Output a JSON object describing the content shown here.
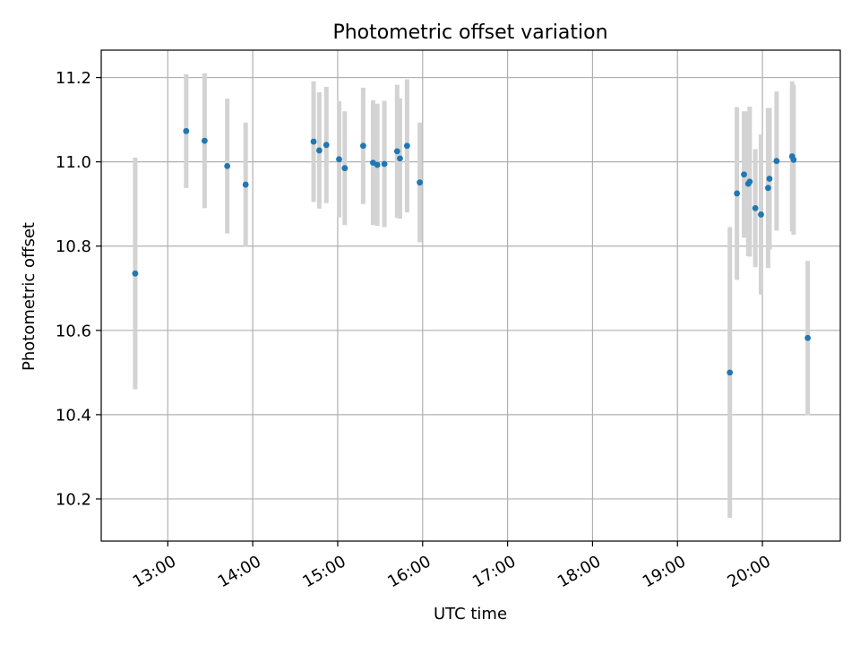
{
  "chart_data": {
    "type": "scatter",
    "title": "Photometric offset variation",
    "xlabel": "UTC time",
    "ylabel": "Photometric offset",
    "xlim": [
      "12:13",
      "20:55"
    ],
    "ylim": [
      10.1,
      11.265
    ],
    "grid": true,
    "x_ticks": [
      "13:00",
      "14:00",
      "15:00",
      "16:00",
      "17:00",
      "18:00",
      "19:00",
      "20:00"
    ],
    "y_ticks": [
      10.2,
      10.4,
      10.6,
      10.8,
      11.0,
      11.2
    ],
    "colors": {
      "point": "#1f77b4",
      "error_bar": "#d3d3d3",
      "grid": "#b0b0b0"
    },
    "points": [
      {
        "x": "12:37",
        "y": 10.735,
        "err": 0.275
      },
      {
        "x": "13:13",
        "y": 11.073,
        "err": 0.135
      },
      {
        "x": "13:26",
        "y": 11.05,
        "err": 0.16
      },
      {
        "x": "13:42",
        "y": 10.99,
        "err": 0.16
      },
      {
        "x": "13:55",
        "y": 10.946,
        "err": 0.147
      },
      {
        "x": "14:43",
        "y": 11.048,
        "err": 0.143
      },
      {
        "x": "14:47",
        "y": 11.027,
        "err": 0.138
      },
      {
        "x": "14:52",
        "y": 11.04,
        "err": 0.138
      },
      {
        "x": "15:01",
        "y": 11.006,
        "err": 0.138
      },
      {
        "x": "15:05",
        "y": 10.985,
        "err": 0.135
      },
      {
        "x": "15:18",
        "y": 11.038,
        "err": 0.138
      },
      {
        "x": "15:25",
        "y": 10.998,
        "err": 0.148
      },
      {
        "x": "15:28",
        "y": 10.993,
        "err": 0.145
      },
      {
        "x": "15:33",
        "y": 10.995,
        "err": 0.15
      },
      {
        "x": "15:42",
        "y": 11.025,
        "err": 0.158
      },
      {
        "x": "15:44",
        "y": 11.008,
        "err": 0.143
      },
      {
        "x": "15:49",
        "y": 11.038,
        "err": 0.158
      },
      {
        "x": "15:58",
        "y": 10.951,
        "err": 0.142
      },
      {
        "x": "19:37",
        "y": 10.5,
        "err": 0.345
      },
      {
        "x": "19:42",
        "y": 10.925,
        "err": 0.205
      },
      {
        "x": "19:47",
        "y": 10.97,
        "err": 0.15
      },
      {
        "x": "19:50",
        "y": 10.948,
        "err": 0.172
      },
      {
        "x": "19:51",
        "y": 10.953,
        "err": 0.178
      },
      {
        "x": "19:55",
        "y": 10.89,
        "err": 0.14
      },
      {
        "x": "19:59",
        "y": 10.875,
        "err": 0.19
      },
      {
        "x": "20:04",
        "y": 10.938,
        "err": 0.19
      },
      {
        "x": "20:05",
        "y": 10.96,
        "err": 0.168
      },
      {
        "x": "20:10",
        "y": 11.002,
        "err": 0.165
      },
      {
        "x": "20:21",
        "y": 11.013,
        "err": 0.178
      },
      {
        "x": "20:22",
        "y": 11.005,
        "err": 0.178
      },
      {
        "x": "20:32",
        "y": 10.582,
        "err": 0.183
      }
    ]
  }
}
